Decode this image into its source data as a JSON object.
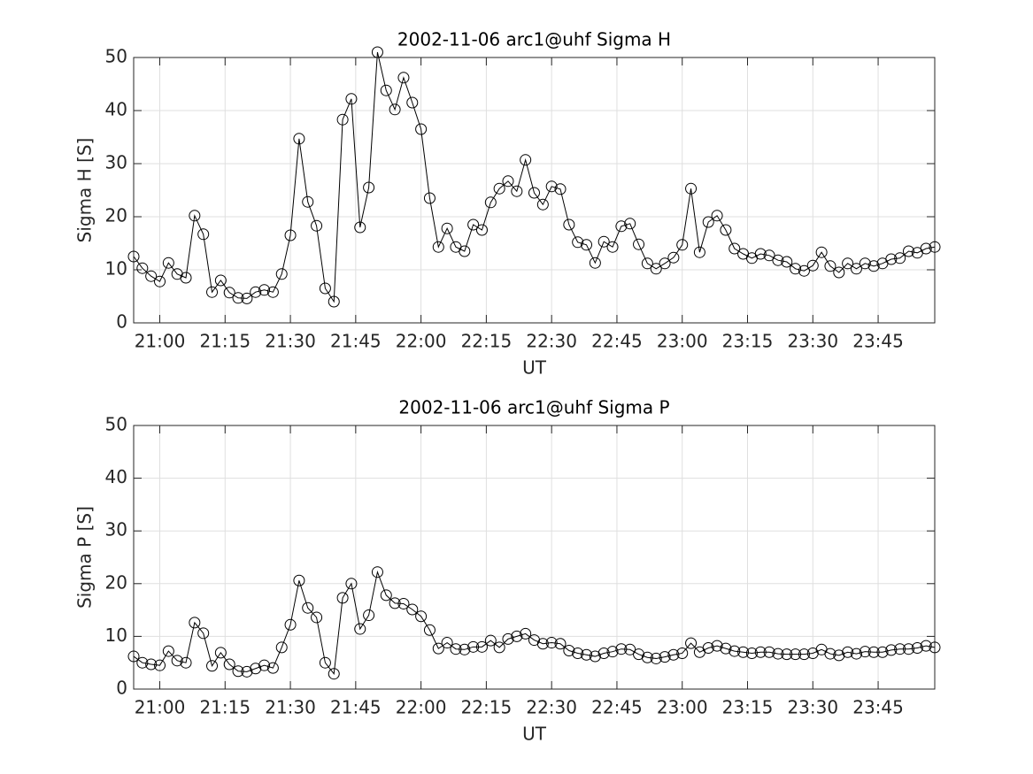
{
  "chart_data": [
    {
      "type": "line",
      "title": "2002-11-06  arc1@uhf Sigma H",
      "xlabel": "UT",
      "ylabel": "Sigma H [S]",
      "color": "#000000",
      "marker": "circle",
      "grid": true,
      "x": [
        "20:54",
        "20:56",
        "20:58",
        "21:00",
        "21:02",
        "21:04",
        "21:06",
        "21:08",
        "21:10",
        "21:12",
        "21:14",
        "21:16",
        "21:18",
        "21:20",
        "21:22",
        "21:24",
        "21:26",
        "21:28",
        "21:30",
        "21:32",
        "21:34",
        "21:36",
        "21:38",
        "21:40",
        "21:42",
        "21:44",
        "21:46",
        "21:48",
        "21:50",
        "21:52",
        "21:54",
        "21:56",
        "21:58",
        "22:00",
        "22:02",
        "22:04",
        "22:06",
        "22:08",
        "22:10",
        "22:12",
        "22:14",
        "22:16",
        "22:18",
        "22:20",
        "22:22",
        "22:24",
        "22:26",
        "22:28",
        "22:30",
        "22:32",
        "22:34",
        "22:36",
        "22:38",
        "22:40",
        "22:42",
        "22:44",
        "22:46",
        "22:48",
        "22:50",
        "22:52",
        "22:54",
        "22:56",
        "22:58",
        "23:00",
        "23:02",
        "23:04",
        "23:06",
        "23:08",
        "23:10",
        "23:12",
        "23:14",
        "23:16",
        "23:18",
        "23:20",
        "23:22",
        "23:24",
        "23:26",
        "23:28",
        "23:30",
        "23:32",
        "23:34",
        "23:36",
        "23:38",
        "23:40",
        "23:42",
        "23:44",
        "23:46",
        "23:48",
        "23:50",
        "23:52",
        "23:54",
        "23:56",
        "23:58"
      ],
      "values": [
        12.5,
        10.3,
        8.8,
        7.8,
        11.3,
        9.2,
        8.5,
        20.2,
        16.7,
        5.8,
        8.0,
        5.7,
        4.7,
        4.6,
        5.8,
        6.2,
        5.8,
        9.2,
        16.5,
        34.7,
        22.8,
        18.3,
        6.5,
        4.0,
        38.3,
        42.2,
        18.0,
        25.5,
        51.0,
        43.8,
        40.2,
        46.2,
        41.5,
        36.5,
        23.5,
        14.3,
        17.8,
        14.3,
        13.5,
        18.5,
        17.5,
        22.7,
        25.3,
        26.7,
        24.8,
        30.7,
        24.5,
        22.3,
        25.7,
        25.2,
        18.5,
        15.2,
        14.7,
        11.3,
        15.3,
        14.3,
        18.2,
        18.7,
        14.8,
        11.2,
        10.2,
        11.2,
        12.3,
        14.7,
        25.3,
        13.3,
        19.0,
        20.2,
        17.5,
        14.0,
        13.0,
        12.2,
        13.0,
        12.7,
        11.8,
        11.5,
        10.2,
        9.8,
        10.8,
        13.3,
        10.7,
        9.5,
        11.2,
        10.2,
        11.2,
        10.7,
        11.2,
        12.0,
        12.2,
        13.5,
        13.2,
        14.0,
        14.3
      ],
      "xlim": [
        "20:54",
        "23:58"
      ],
      "xticks": [
        "21:00",
        "21:15",
        "21:30",
        "21:45",
        "22:00",
        "22:15",
        "22:30",
        "22:45",
        "23:00",
        "23:15",
        "23:30",
        "23:45"
      ],
      "ylim": [
        0,
        50
      ],
      "yticks": [
        0,
        10,
        20,
        30,
        40,
        50
      ]
    },
    {
      "type": "line",
      "title": "2002-11-06  arc1@uhf Sigma P",
      "xlabel": "UT",
      "ylabel": "Sigma P [S]",
      "color": "#000000",
      "marker": "circle",
      "grid": true,
      "x": [
        "20:54",
        "20:56",
        "20:58",
        "21:00",
        "21:02",
        "21:04",
        "21:06",
        "21:08",
        "21:10",
        "21:12",
        "21:14",
        "21:16",
        "21:18",
        "21:20",
        "21:22",
        "21:24",
        "21:26",
        "21:28",
        "21:30",
        "21:32",
        "21:34",
        "21:36",
        "21:38",
        "21:40",
        "21:42",
        "21:44",
        "21:46",
        "21:48",
        "21:50",
        "21:52",
        "21:54",
        "21:56",
        "21:58",
        "22:00",
        "22:02",
        "22:04",
        "22:06",
        "22:08",
        "22:10",
        "22:12",
        "22:14",
        "22:16",
        "22:18",
        "22:20",
        "22:22",
        "22:24",
        "22:26",
        "22:28",
        "22:30",
        "22:32",
        "22:34",
        "22:36",
        "22:38",
        "22:40",
        "22:42",
        "22:44",
        "22:46",
        "22:48",
        "22:50",
        "22:52",
        "22:54",
        "22:56",
        "22:58",
        "23:00",
        "23:02",
        "23:04",
        "23:06",
        "23:08",
        "23:10",
        "23:12",
        "23:14",
        "23:16",
        "23:18",
        "23:20",
        "23:22",
        "23:24",
        "23:26",
        "23:28",
        "23:30",
        "23:32",
        "23:34",
        "23:36",
        "23:38",
        "23:40",
        "23:42",
        "23:44",
        "23:46",
        "23:48",
        "23:50",
        "23:52",
        "23:54",
        "23:56",
        "23:58"
      ],
      "values": [
        6.2,
        5.0,
        4.7,
        4.5,
        7.2,
        5.4,
        5.0,
        12.6,
        10.6,
        4.4,
        6.9,
        4.7,
        3.4,
        3.3,
        3.9,
        4.5,
        4.0,
        7.9,
        12.2,
        20.6,
        15.4,
        13.6,
        5.0,
        2.9,
        17.3,
        20.0,
        11.4,
        14.0,
        22.2,
        17.8,
        16.3,
        16.2,
        15.1,
        13.8,
        11.2,
        7.7,
        8.8,
        7.6,
        7.5,
        8.0,
        8.0,
        9.2,
        7.9,
        9.5,
        10.0,
        10.5,
        9.3,
        8.6,
        8.8,
        8.6,
        7.3,
        6.8,
        6.5,
        6.2,
        6.8,
        7.1,
        7.6,
        7.5,
        6.6,
        6.0,
        5.8,
        6.1,
        6.5,
        6.8,
        8.7,
        7.0,
        7.8,
        8.2,
        7.7,
        7.2,
        7.0,
        6.8,
        7.0,
        7.0,
        6.7,
        6.6,
        6.6,
        6.6,
        6.8,
        7.5,
        6.7,
        6.4,
        7.0,
        6.7,
        7.1,
        7.0,
        7.0,
        7.4,
        7.6,
        7.6,
        7.8,
        8.2,
        7.9
      ],
      "xlim": [
        "20:54",
        "23:58"
      ],
      "xticks": [
        "21:00",
        "21:15",
        "21:30",
        "21:45",
        "22:00",
        "22:15",
        "22:30",
        "22:45",
        "23:00",
        "23:15",
        "23:30",
        "23:45"
      ],
      "ylim": [
        0,
        50
      ],
      "yticks": [
        0,
        10,
        20,
        30,
        40,
        50
      ]
    }
  ]
}
